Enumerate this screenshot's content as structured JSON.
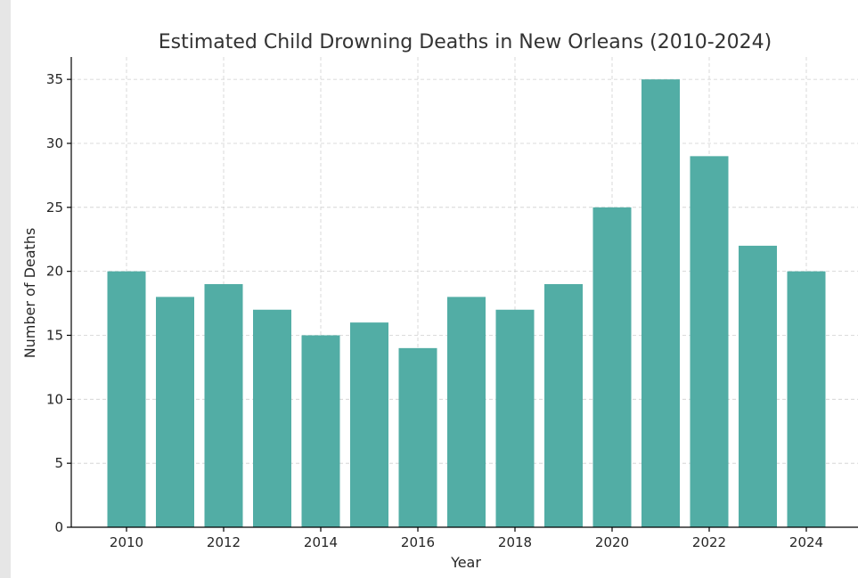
{
  "chart_data": {
    "type": "bar",
    "title": "Estimated Child Drowning Deaths in New Orleans (2010-2024)",
    "xlabel": "Year",
    "ylabel": "Number of Deaths",
    "categories": [
      2010,
      2011,
      2012,
      2013,
      2014,
      2015,
      2016,
      2017,
      2018,
      2019,
      2020,
      2021,
      2022,
      2023,
      2024
    ],
    "values": [
      20,
      18,
      19,
      17,
      15,
      16,
      14,
      18,
      17,
      19,
      25,
      35,
      29,
      22,
      20
    ],
    "x_ticks": [
      2010,
      2012,
      2014,
      2016,
      2018,
      2020,
      2022,
      2024
    ],
    "y_ticks": [
      0,
      5,
      10,
      15,
      20,
      25,
      30,
      35
    ],
    "ylim": [
      0,
      36.75
    ],
    "grid": true,
    "bar_color": "#52ada5"
  }
}
